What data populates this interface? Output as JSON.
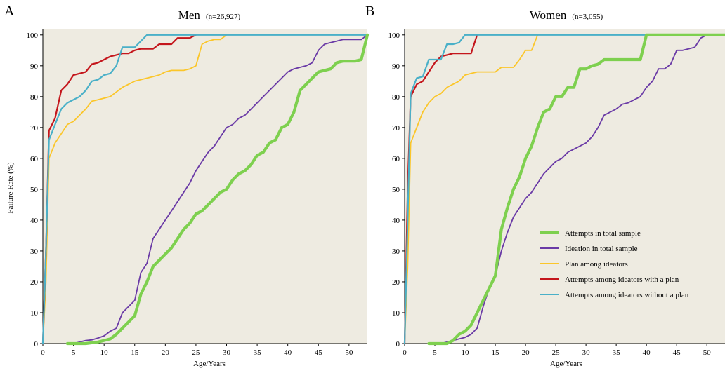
{
  "figure": {
    "ylabel": "Failure Rate (%)",
    "xlabel": "Age/Years"
  },
  "colors": {
    "plot_bg": "#eeebe1",
    "attempts_total": "#7ed04f",
    "ideation_total": "#6a3aa6",
    "plan_among": "#fbc62a",
    "attempts_with_plan": "#c4161c",
    "attempts_without_plan": "#4ab0c8"
  },
  "legend": {
    "items": [
      {
        "label": "Attempts in total sample",
        "color": "#7ed04f"
      },
      {
        "label": "Ideation in total sample",
        "color": "#6a3aa6"
      },
      {
        "label": "Plan among ideators",
        "color": "#fbc62a"
      },
      {
        "label": "Attempts among ideators with a plan",
        "color": "#c4161c"
      },
      {
        "label": "Attempts among ideators without a plan",
        "color": "#4ab0c8"
      }
    ]
  },
  "panels": [
    {
      "letter": "A",
      "title": "Men",
      "n": "(n=26,927)"
    },
    {
      "letter": "B",
      "title": "Women",
      "n": "(n=3,055)"
    }
  ],
  "chart_data": [
    {
      "type": "line",
      "title": "Men",
      "subtitle": "(n=26,927)",
      "xlabel": "Age/Years",
      "ylabel": "Failure Rate (%)",
      "xlim": [
        0,
        53
      ],
      "ylim": [
        0,
        102
      ],
      "xticks": [
        0,
        5,
        10,
        15,
        20,
        25,
        30,
        35,
        40,
        45,
        50
      ],
      "yticks": [
        0,
        10,
        20,
        30,
        40,
        50,
        60,
        70,
        80,
        90,
        100
      ],
      "grid": false,
      "series": [
        {
          "name": "Attempts in total sample",
          "key": "attempts_total",
          "x": [
            4,
            7,
            9,
            10,
            11,
            12,
            13,
            14,
            15,
            16,
            17,
            18,
            19,
            20,
            21,
            22,
            23,
            24,
            25,
            26,
            27,
            28,
            29,
            30,
            31,
            32,
            33,
            34,
            35,
            36,
            37,
            38,
            39,
            40,
            41,
            42,
            43,
            44,
            45,
            46,
            47,
            48,
            49,
            50,
            51,
            52,
            53
          ],
          "y": [
            0,
            0,
            0.5,
            1,
            1.5,
            3,
            5,
            7,
            9,
            16,
            20,
            25,
            27,
            29,
            31,
            34,
            37,
            39,
            42,
            43,
            45,
            47,
            49,
            50,
            53,
            55,
            56,
            58,
            61,
            62,
            65,
            66,
            70,
            71,
            75,
            82,
            84,
            86,
            88,
            88.5,
            89,
            91,
            91.5,
            91.5,
            91.5,
            92,
            100
          ]
        },
        {
          "name": "Ideation in total sample",
          "key": "ideation_total",
          "x": [
            4,
            5,
            6,
            7,
            8,
            9,
            10,
            11,
            12,
            13,
            14,
            15,
            16,
            17,
            18,
            19,
            20,
            21,
            22,
            23,
            24,
            25,
            26,
            27,
            28,
            29,
            30,
            31,
            32,
            33,
            34,
            35,
            36,
            37,
            38,
            39,
            40,
            41,
            42,
            43,
            44,
            45,
            46,
            47,
            48,
            49,
            50,
            51,
            52,
            53
          ],
          "y": [
            0,
            0,
            0.5,
            1,
            1.2,
            1.8,
            2.5,
            4,
            5,
            10,
            12,
            14,
            23,
            26,
            34,
            37,
            40,
            43,
            46,
            49,
            52,
            56,
            59,
            62,
            64,
            67,
            70,
            71,
            73,
            74,
            76,
            78,
            80,
            82,
            84,
            86,
            88,
            89,
            89.5,
            90,
            91,
            95,
            97,
            97.5,
            98,
            98.5,
            98.5,
            98.5,
            98.5,
            100
          ]
        },
        {
          "name": "Plan among ideators",
          "key": "plan_among",
          "x": [
            0,
            0.5,
            1,
            2,
            3,
            4,
            5,
            6,
            7,
            8,
            9,
            10,
            11,
            12,
            13,
            14,
            15,
            16,
            17,
            18,
            19,
            20,
            21,
            22,
            23,
            24,
            25,
            26,
            27,
            28,
            29,
            30
          ],
          "y": [
            0,
            20,
            60,
            65,
            68,
            71,
            72,
            74,
            76,
            78.5,
            79,
            79.5,
            80,
            81.5,
            83,
            84,
            85,
            85.5,
            86,
            86.5,
            87,
            88,
            88.5,
            88.5,
            88.5,
            89,
            90,
            97,
            98,
            98.5,
            98.5,
            100
          ]
        },
        {
          "name": "Attempts among ideators with a plan",
          "key": "attempts_with_plan",
          "x": [
            0,
            0.5,
            1,
            2,
            3,
            4,
            5,
            6,
            7,
            8,
            9,
            10,
            11,
            12,
            13,
            14,
            15,
            16,
            17,
            18,
            19,
            20,
            21,
            22,
            23,
            24,
            25
          ],
          "y": [
            0,
            30,
            69,
            73,
            82,
            84,
            87,
            87.5,
            88,
            90.5,
            91,
            92,
            93,
            93.5,
            94,
            94,
            95,
            95.5,
            95.5,
            95.5,
            97,
            97,
            97,
            99,
            99,
            99,
            100
          ]
        },
        {
          "name": "Attempts among ideators without a plan",
          "key": "attempts_without_plan",
          "x": [
            0,
            0.5,
            1,
            2,
            3,
            4,
            5,
            6,
            7,
            8,
            9,
            10,
            11,
            12,
            13,
            14,
            15,
            16,
            17,
            18,
            53
          ],
          "y": [
            0,
            30,
            66,
            71,
            76,
            78,
            79,
            80,
            82,
            85,
            85.5,
            87,
            87.5,
            90,
            96,
            96,
            96,
            98,
            100,
            100,
            100
          ]
        }
      ]
    },
    {
      "type": "line",
      "title": "Women",
      "subtitle": "(n=3,055)",
      "xlabel": "Age/Years",
      "ylabel": "Failure Rate (%)",
      "xlim": [
        0,
        53
      ],
      "ylim": [
        0,
        102
      ],
      "xticks": [
        0,
        5,
        10,
        15,
        20,
        25,
        30,
        35,
        40,
        45,
        50
      ],
      "yticks": [
        0,
        10,
        20,
        30,
        40,
        50,
        60,
        70,
        80,
        90,
        100
      ],
      "grid": false,
      "legend_position": "bottom-right",
      "series": [
        {
          "name": "Attempts in total sample",
          "key": "attempts_total",
          "x": [
            4,
            7,
            8,
            9,
            10,
            11,
            12,
            13,
            14,
            15,
            16,
            17,
            18,
            19,
            20,
            21,
            22,
            23,
            24,
            25,
            26,
            27,
            28,
            29,
            30,
            31,
            32,
            33,
            34,
            35,
            36,
            37,
            38,
            39,
            40,
            53
          ],
          "y": [
            0,
            0,
            1,
            3,
            4,
            6,
            10,
            14,
            18,
            22,
            37,
            44,
            50,
            54,
            60,
            64,
            70,
            75,
            76,
            80,
            80,
            83,
            83,
            89,
            89,
            90,
            90.5,
            92,
            92,
            92,
            92,
            92,
            92,
            92,
            100,
            100
          ]
        },
        {
          "name": "Ideation in total sample",
          "key": "ideation_total",
          "x": [
            4,
            5,
            6,
            7,
            8,
            9,
            10,
            11,
            12,
            13,
            14,
            15,
            16,
            17,
            18,
            19,
            20,
            21,
            22,
            23,
            24,
            25,
            26,
            27,
            28,
            29,
            30,
            31,
            32,
            33,
            34,
            35,
            36,
            37,
            38,
            39,
            40,
            41,
            42,
            43,
            44,
            45,
            46,
            47,
            48,
            49,
            50
          ],
          "y": [
            0,
            0,
            0,
            0.5,
            1,
            1.5,
            2,
            3,
            5,
            12,
            18,
            22,
            30,
            36,
            41,
            44,
            47,
            49,
            52,
            55,
            57,
            59,
            60,
            62,
            63,
            64,
            65,
            67,
            70,
            74,
            75,
            76,
            77.5,
            78,
            79,
            80,
            83,
            85,
            89,
            89,
            90.5,
            95,
            95,
            95.5,
            96,
            99,
            100
          ]
        },
        {
          "name": "Plan among ideators",
          "key": "plan_among",
          "x": [
            0,
            0.5,
            1,
            2,
            3,
            4,
            5,
            6,
            7,
            8,
            9,
            10,
            11,
            12,
            13,
            14,
            15,
            16,
            17,
            18,
            19,
            20,
            21,
            22
          ],
          "y": [
            0,
            25,
            65,
            70,
            75,
            78,
            80,
            81,
            83,
            84,
            85,
            87,
            87.5,
            88,
            88,
            88,
            88,
            89.5,
            89.5,
            89.5,
            92,
            95,
            95,
            100
          ]
        },
        {
          "name": "Attempts among ideators with a plan",
          "key": "attempts_with_plan",
          "x": [
            0,
            0.5,
            1,
            2,
            3,
            4,
            5,
            6,
            7,
            8,
            9,
            10,
            11,
            12
          ],
          "y": [
            0,
            50,
            80,
            84,
            85,
            88,
            91,
            93,
            93.5,
            94,
            94,
            94,
            94,
            100
          ]
        },
        {
          "name": "Attempts among ideators without a plan",
          "key": "attempts_without_plan",
          "x": [
            0,
            0.5,
            1,
            2,
            3,
            4,
            5,
            6,
            7,
            8,
            9,
            10,
            53
          ],
          "y": [
            0,
            40,
            81,
            86,
            86.5,
            92,
            92,
            92,
            97,
            97,
            97.5,
            100,
            100
          ]
        }
      ]
    }
  ]
}
